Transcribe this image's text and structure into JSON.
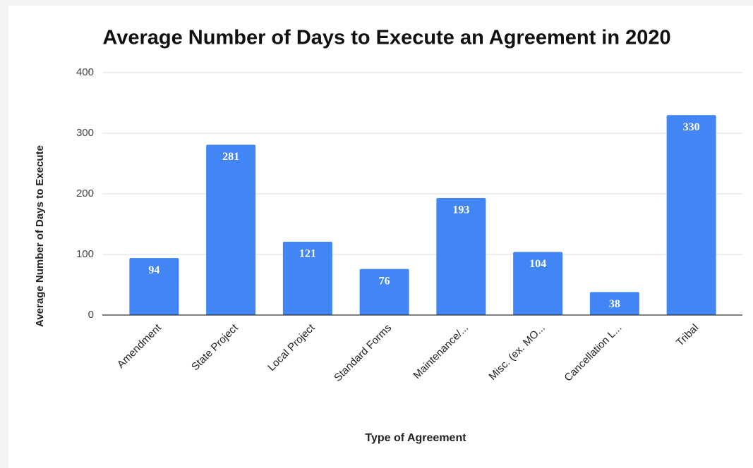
{
  "chart_data": {
    "type": "bar",
    "title": "Average Number of Days to Execute an Agreement in 2020",
    "x_label": "Type of Agreement",
    "y_label": "Average Number of Days to Execute",
    "categories": [
      "Amendment",
      "State Project",
      "Local Project",
      "Standard Forms",
      "Maintenance/...",
      "Misc. (ex. MO...",
      "Cancellation L...",
      "Tribal"
    ],
    "values": [
      94,
      281,
      121,
      76,
      193,
      104,
      38,
      330
    ],
    "color": "#4285f4",
    "ylim": [
      0,
      400
    ],
    "yticks": [
      0,
      100,
      200,
      300,
      400
    ],
    "grid": true
  }
}
